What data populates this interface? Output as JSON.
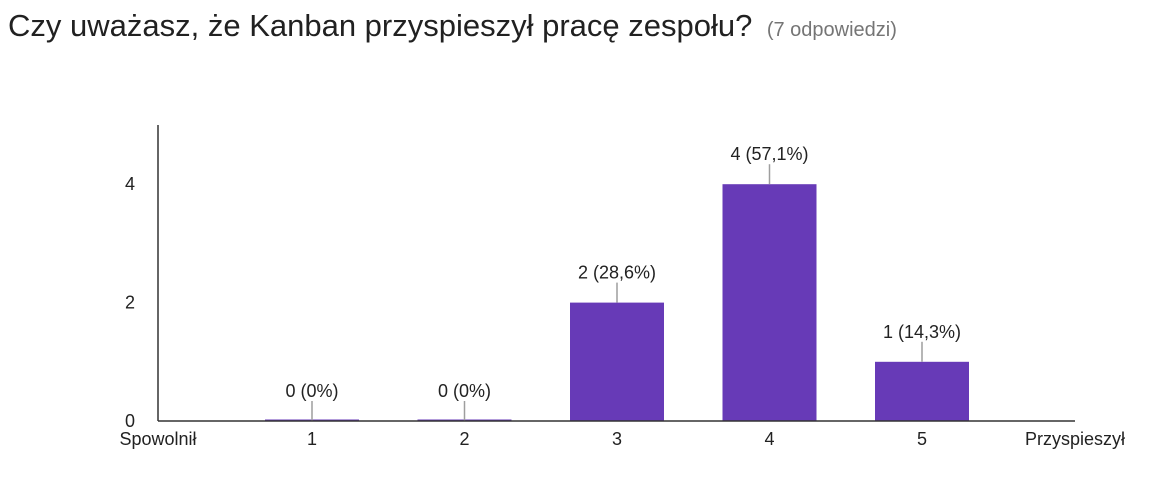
{
  "header": {
    "title": "Czy uważasz, że Kanban przyspieszył pracę zespołu?",
    "response_count": "(7 odpowiedzi)"
  },
  "colors": {
    "bar": "#673ab7",
    "axis": "#333333",
    "text": "#222222"
  },
  "chart_data": {
    "type": "bar",
    "categories": [
      "1",
      "2",
      "3",
      "4",
      "5"
    ],
    "values": [
      0,
      0,
      2,
      4,
      1
    ],
    "data_labels": [
      "0 (0%)",
      "0 (0%)",
      "2 (28,6%)",
      "4 (57,1%)",
      "1 (14,3%)"
    ],
    "y_ticks": [
      0,
      2,
      4
    ],
    "ylim": [
      0,
      5
    ],
    "x_end_labels": {
      "left": "Spowolnił",
      "right": "Przyspieszył"
    },
    "grid": false
  }
}
